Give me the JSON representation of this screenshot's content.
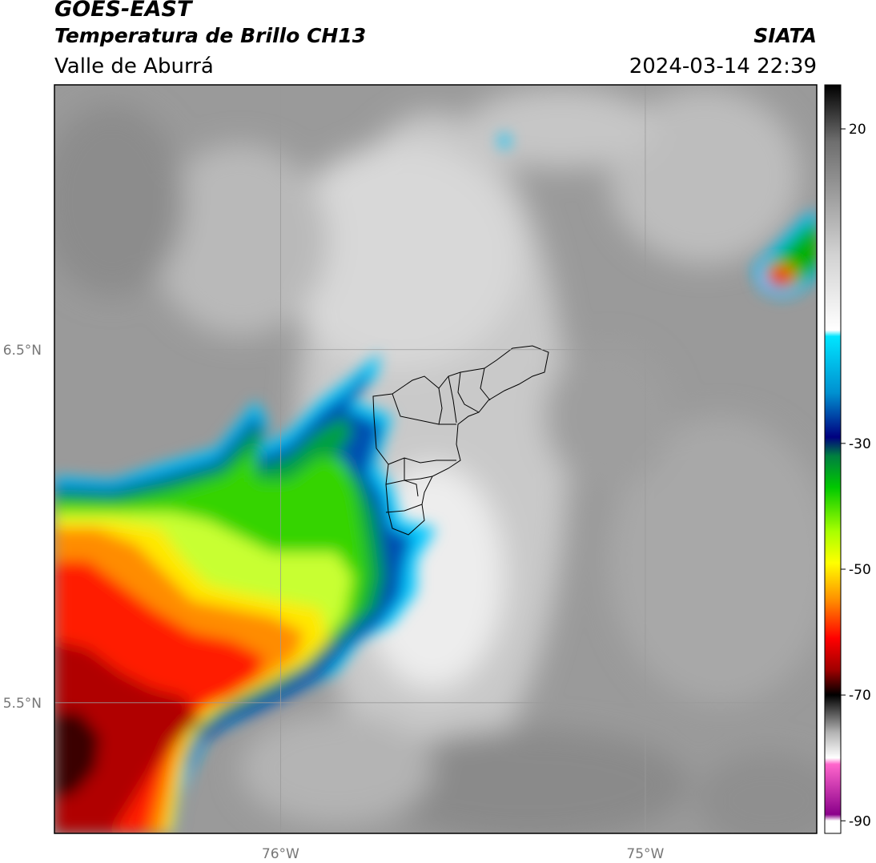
{
  "header": {
    "satellite": "GOES-EAST",
    "product": "Temperatura de Brillo CH13",
    "region": "Valle de Aburrá",
    "organization": "SIATA",
    "timestamp": "2024-03-14 22:39"
  },
  "map": {
    "lon_range": [
      -76.62,
      -74.53
    ],
    "lat_range": [
      5.13,
      7.25
    ],
    "lat_gridlines": [
      {
        "value": 6.5,
        "label": "6.5°N"
      },
      {
        "value": 5.5,
        "label": "5.5°N"
      }
    ],
    "lon_gridlines": [
      {
        "value": -76.0,
        "label": "76°W"
      },
      {
        "value": -75.0,
        "label": "75°W"
      }
    ],
    "background_color": "#9a9a9a",
    "gridline_color": "#9a9a9a",
    "outline_color": "#000000"
  },
  "colorbar": {
    "range": [
      -92,
      27
    ],
    "ticks": [
      {
        "value": 20,
        "label": "20"
      },
      {
        "value": -30,
        "label": "-30"
      },
      {
        "value": -50,
        "label": "-50"
      },
      {
        "value": -70,
        "label": "-70"
      },
      {
        "value": -90,
        "label": "-90"
      }
    ],
    "stops": [
      {
        "value": 27,
        "color": "#000000"
      },
      {
        "value": 18,
        "color": "#6e6e6e"
      },
      {
        "value": 0,
        "color": "#d2d2d2"
      },
      {
        "value": -12,
        "color": "#ffffff"
      },
      {
        "value": -13,
        "color": "#00e5ff"
      },
      {
        "value": -22,
        "color": "#0090d0"
      },
      {
        "value": -29,
        "color": "#000080"
      },
      {
        "value": -32,
        "color": "#008040"
      },
      {
        "value": -37,
        "color": "#00c800"
      },
      {
        "value": -44,
        "color": "#a8ff00"
      },
      {
        "value": -49,
        "color": "#ffff00"
      },
      {
        "value": -55,
        "color": "#ff8c00"
      },
      {
        "value": -61,
        "color": "#ff0000"
      },
      {
        "value": -66,
        "color": "#a00000"
      },
      {
        "value": -70,
        "color": "#000000"
      },
      {
        "value": -76,
        "color": "#b4b4b4"
      },
      {
        "value": -80,
        "color": "#ffffff"
      },
      {
        "value": -81,
        "color": "#ff66cc"
      },
      {
        "value": -89,
        "color": "#8a008a"
      },
      {
        "value": -90,
        "color": "#ffffff"
      },
      {
        "value": -92,
        "color": "#ffffff"
      }
    ]
  }
}
